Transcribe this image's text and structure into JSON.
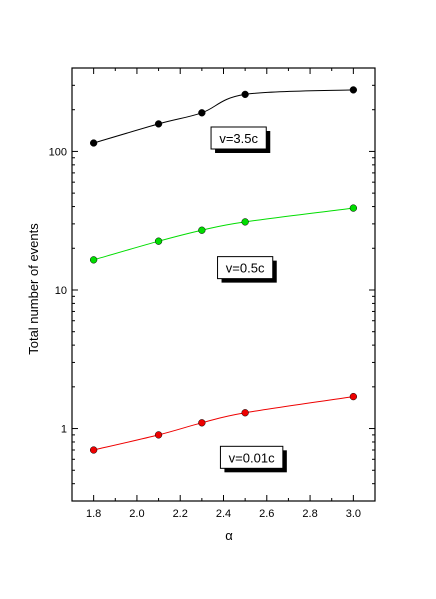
{
  "chart_data": {
    "type": "line",
    "xlabel": "α",
    "ylabel": "Total number of events",
    "x_scale": "linear",
    "y_scale": "log",
    "xlim": [
      1.7,
      3.1
    ],
    "ylim": [
      0.3,
      400
    ],
    "x_ticks": [
      1.8,
      2.0,
      2.2,
      2.4,
      2.6,
      2.8,
      3.0
    ],
    "x_tick_labels": [
      "1.8",
      "2.0",
      "2.2",
      "2.4",
      "2.6",
      "2.8",
      "3.0"
    ],
    "y_ticks": [
      1,
      10,
      100
    ],
    "y_tick_labels": [
      "1",
      "10",
      "100"
    ],
    "grid": false,
    "x": [
      1.8,
      2.1,
      2.3,
      2.5,
      3.0
    ],
    "series": [
      {
        "name": "v=3.5c",
        "color": "#000000",
        "values": [
          115,
          158,
          190,
          258,
          278
        ]
      },
      {
        "name": "v=0.5c",
        "color": "#00dd00",
        "values": [
          16.5,
          22.5,
          27,
          31,
          39
        ]
      },
      {
        "name": "v=0.01c",
        "color": "#ee0000",
        "values": [
          0.7,
          0.9,
          1.1,
          1.3,
          1.7
        ]
      }
    ]
  }
}
